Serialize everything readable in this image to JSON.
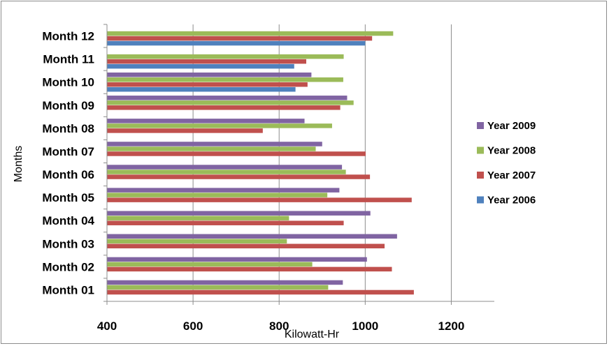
{
  "chart_data": {
    "type": "bar",
    "orientation": "horizontal",
    "categories": [
      "Month 01",
      "Month 02",
      "Month 03",
      "Month 04",
      "Month 05",
      "Month 06",
      "Month 07",
      "Month 08",
      "Month 09",
      "Month 10",
      "Month 11",
      "Month 12"
    ],
    "series": [
      {
        "name": "Year 2006",
        "color": "#4f81bd",
        "values": [
          null,
          null,
          null,
          null,
          null,
          null,
          null,
          null,
          null,
          838,
          835,
          1000
        ]
      },
      {
        "name": "Year 2007",
        "color": "#c0504d",
        "values": [
          1113,
          1062,
          1045,
          950,
          1108,
          1011,
          1001,
          762,
          942,
          866,
          863,
          1016
        ]
      },
      {
        "name": "Year 2008",
        "color": "#9bbb59",
        "values": [
          914,
          877,
          818,
          823,
          912,
          955,
          885,
          923,
          973,
          949,
          950,
          1065
        ]
      },
      {
        "name": "Year 2009",
        "color": "#8064a2",
        "values": [
          948,
          1004,
          1074,
          1012,
          940,
          946,
          900,
          859,
          958,
          875,
          null,
          null
        ]
      }
    ],
    "xlabel": "Kilowatt-Hr",
    "ylabel": "Months",
    "xlim": [
      400,
      1300
    ],
    "xticks": [
      "400",
      "600",
      "800",
      "1000",
      "1200"
    ],
    "grid": "vertical major gridlines",
    "legend_position": "right"
  }
}
